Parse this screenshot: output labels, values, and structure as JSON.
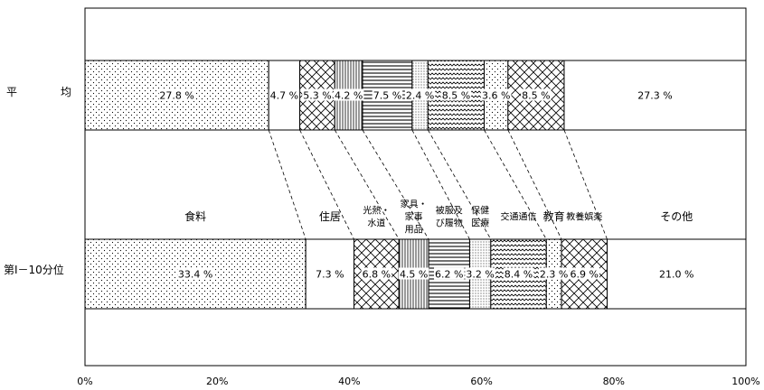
{
  "chart_data": {
    "type": "bar",
    "orientation": "horizontal",
    "stacked": "percent",
    "rows": [
      "平　　　　均",
      "第Ⅰ－10分位"
    ],
    "categories": [
      "食料",
      "住居",
      "光熱・水道",
      "家具・家事用品",
      "被服及び履物",
      "保健医療",
      "交通通信",
      "教育",
      "教養娯楽",
      "その他"
    ],
    "category_labels": [
      [
        "食料"
      ],
      [
        "住居"
      ],
      [
        "光熱・",
        "水道"
      ],
      [
        "家具・",
        "家事",
        "用品"
      ],
      [
        "被服及",
        "び履物"
      ],
      [
        "保健",
        "医療"
      ],
      [
        "交通通信"
      ],
      [
        "教育"
      ],
      [
        "教養娯楽"
      ],
      [
        "その他"
      ]
    ],
    "series": [
      {
        "row": "平　　　　均",
        "values": [
          27.8,
          4.7,
          5.3,
          4.2,
          7.5,
          2.4,
          8.5,
          3.6,
          8.5,
          27.3
        ],
        "labels": [
          "27.8 %",
          "4.7 %",
          "5.3 %",
          "4.2 %",
          "7.5 %",
          "2.4 %",
          "8.5 %",
          "3.6 %",
          "8.5 %",
          "27.3 %"
        ]
      },
      {
        "row": "第Ⅰ－10分位",
        "values": [
          33.4,
          7.3,
          6.8,
          4.5,
          6.2,
          3.2,
          8.4,
          2.3,
          6.9,
          21.0
        ],
        "labels": [
          "33.4 %",
          "7.3 %",
          "6.8 %",
          "4.5 %",
          "6.2 %",
          "3.2 %",
          "8.4 %",
          "2.3 %",
          "6.9 %",
          "21.0 %"
        ]
      }
    ],
    "patterns": [
      "dots",
      "none",
      "crosshatch",
      "vlines",
      "hlines",
      "fine-dots",
      "waves",
      "dots",
      "crosshatch",
      "none"
    ],
    "xlim": [
      0,
      100
    ],
    "x_ticks": [
      "0%",
      "20%",
      "40%",
      "60%",
      "80%",
      "100%"
    ],
    "legend": "none",
    "grid": false
  }
}
